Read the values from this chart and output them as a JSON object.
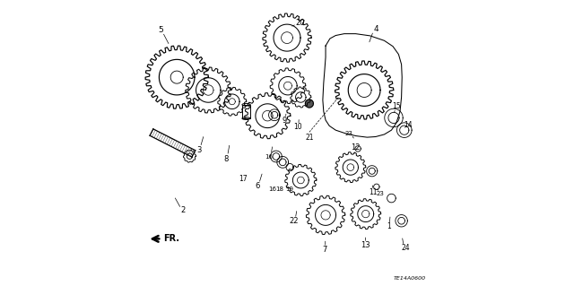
{
  "background_color": "#ffffff",
  "diagram_color": "#000000",
  "watermark": "TE14A0600"
}
